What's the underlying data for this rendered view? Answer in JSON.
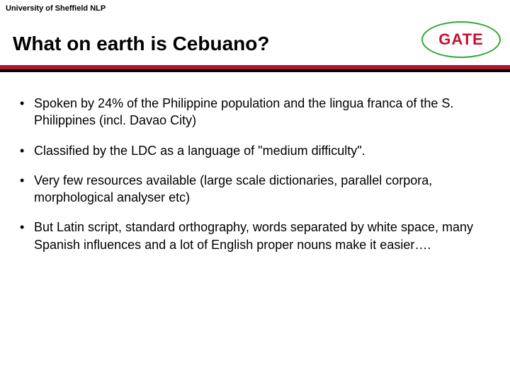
{
  "header": {
    "label": "University of Sheffield NLP"
  },
  "title": "What on earth is Cebuano?",
  "logo": {
    "text": "GATE",
    "ellipse_color": "#2fa835",
    "text_color": "#c8102e"
  },
  "divider": {
    "top_color": "#a6192e",
    "bottom_color": "#000000"
  },
  "bullets": [
    {
      "text": "Spoken by 24% of the Philippine population and the lingua franca of the S. Philippines (incl. Davao City)"
    },
    {
      "text": "Classified by the LDC as a language of \"medium difficulty\"."
    },
    {
      "text": "Very few resources available (large scale dictionaries, parallel corpora, morphological analyser etc)"
    },
    {
      "text": "But Latin script, standard orthography, words separated by white space, many Spanish influences and a lot of English proper nouns make it easier…."
    }
  ],
  "bullet_marker": "•",
  "style": {
    "body_fontsize": 18,
    "title_fontsize": 28,
    "header_fontsize": 11,
    "text_color": "#000000",
    "background_color": "#ffffff"
  }
}
